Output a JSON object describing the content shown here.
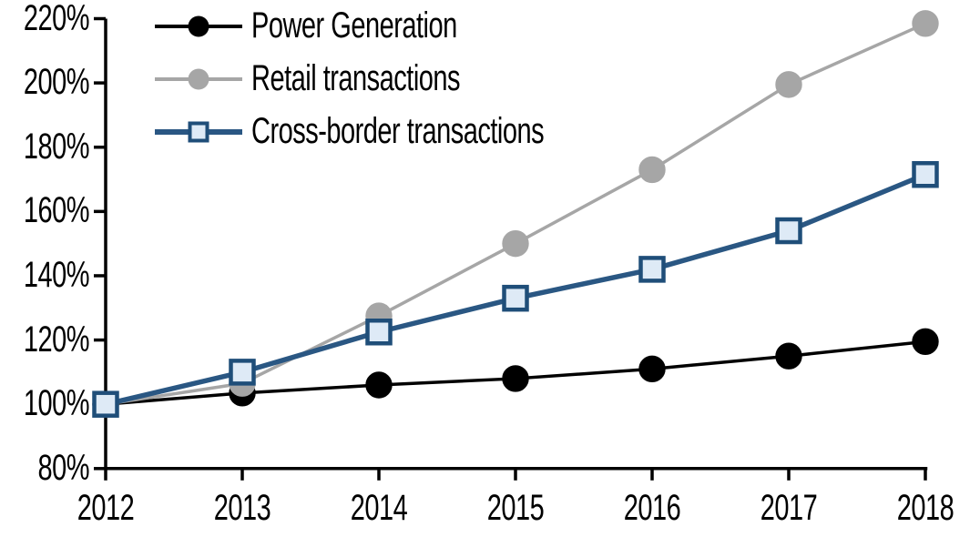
{
  "chart_data": {
    "type": "line",
    "title": "",
    "xlabel": "",
    "ylabel": "",
    "x_labels": [
      "2012",
      "2013",
      "2014",
      "2015",
      "2016",
      "2017",
      "2018"
    ],
    "y_tick_labels": [
      "80%",
      "100%",
      "120%",
      "140%",
      "160%",
      "180%",
      "200%",
      "220%"
    ],
    "ylim": [
      80,
      220
    ],
    "y_step": 20,
    "grid": false,
    "legend_position": "top-left-inside",
    "series": [
      {
        "name": "Power Generation",
        "values": [
          100,
          103.5,
          106,
          108,
          111,
          115,
          119.5
        ],
        "color": "#000000",
        "marker": "circle",
        "marker_fill": "#000000",
        "marker_border": "#000000"
      },
      {
        "name": "Retail transactions",
        "values": [
          100,
          106.5,
          127.5,
          150,
          173,
          199.5,
          218.5
        ],
        "color": "#A6A6A6",
        "marker": "circle",
        "marker_fill": "#A6A6A6",
        "marker_border": "#A6A6A6"
      },
      {
        "name": "Cross-border transactions",
        "values": [
          100,
          110,
          122.5,
          133,
          142,
          154,
          171.5
        ],
        "color": "#2A5783",
        "marker": "square",
        "marker_fill": "#DEEAF6",
        "marker_border": "#1F4E79"
      }
    ]
  },
  "axis_color": "#000000"
}
